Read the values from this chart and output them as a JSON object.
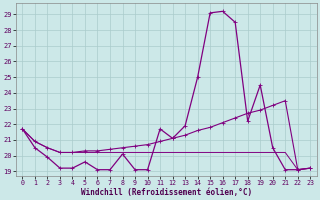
{
  "xlabel": "Windchill (Refroidissement éolien,°C)",
  "background_color": "#cce8e8",
  "grid_color": "#aacccc",
  "line_color": "#800080",
  "x_values": [
    0,
    1,
    2,
    3,
    4,
    5,
    6,
    7,
    8,
    9,
    10,
    11,
    12,
    13,
    14,
    15,
    16,
    17,
    18,
    19,
    20,
    21,
    22,
    23
  ],
  "line1": [
    21.7,
    20.5,
    19.9,
    19.2,
    19.2,
    19.6,
    19.1,
    19.1,
    20.1,
    19.1,
    19.1,
    21.7,
    21.1,
    21.9,
    25.0,
    29.1,
    29.2,
    28.5,
    22.2,
    24.5,
    20.5,
    19.1,
    19.1,
    19.2
  ],
  "line2": [
    21.7,
    20.9,
    20.5,
    20.2,
    20.2,
    20.3,
    20.3,
    20.4,
    20.5,
    20.6,
    20.7,
    20.9,
    21.1,
    21.3,
    21.6,
    21.8,
    22.1,
    22.4,
    22.7,
    22.9,
    23.2,
    23.5,
    19.1,
    19.2
  ],
  "line3": [
    21.7,
    20.9,
    20.5,
    20.2,
    20.2,
    20.2,
    20.2,
    20.2,
    20.2,
    20.2,
    20.2,
    20.2,
    20.2,
    20.2,
    20.2,
    20.2,
    20.2,
    20.2,
    20.2,
    20.2,
    20.2,
    20.2,
    19.1,
    19.2
  ],
  "ylim_min": 18.7,
  "ylim_max": 29.7,
  "yticks": [
    19,
    20,
    21,
    22,
    23,
    24,
    25,
    26,
    27,
    28,
    29
  ],
  "xticks": [
    0,
    1,
    2,
    3,
    4,
    5,
    6,
    7,
    8,
    9,
    10,
    11,
    12,
    13,
    14,
    15,
    16,
    17,
    18,
    19,
    20,
    21,
    22,
    23
  ]
}
